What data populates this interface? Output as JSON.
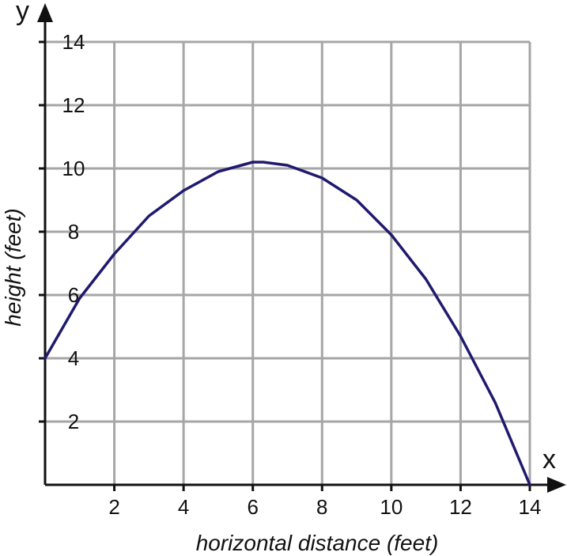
{
  "chart_data": {
    "type": "line",
    "title": "",
    "xlabel": "horizontal distance (feet)",
    "ylabel": "height (feet)",
    "x_axis_letter": "x",
    "y_axis_letter": "y",
    "xlim": [
      0,
      14
    ],
    "ylim": [
      0,
      14
    ],
    "x_ticks": [
      2,
      4,
      6,
      8,
      10,
      12,
      14
    ],
    "y_ticks": [
      2,
      4,
      6,
      8,
      10,
      12,
      14
    ],
    "grid": true,
    "grid_step": 2,
    "series": [
      {
        "color": "#1f1a6e",
        "x": [
          0,
          1,
          2,
          3,
          4,
          5,
          6,
          6.3,
          7,
          8,
          9,
          10,
          11,
          12,
          13,
          14
        ],
        "y": [
          4.0,
          5.9,
          7.3,
          8.5,
          9.3,
          9.9,
          10.2,
          10.2,
          10.1,
          9.7,
          9.0,
          7.9,
          6.5,
          4.7,
          2.6,
          0.0
        ]
      }
    ]
  }
}
